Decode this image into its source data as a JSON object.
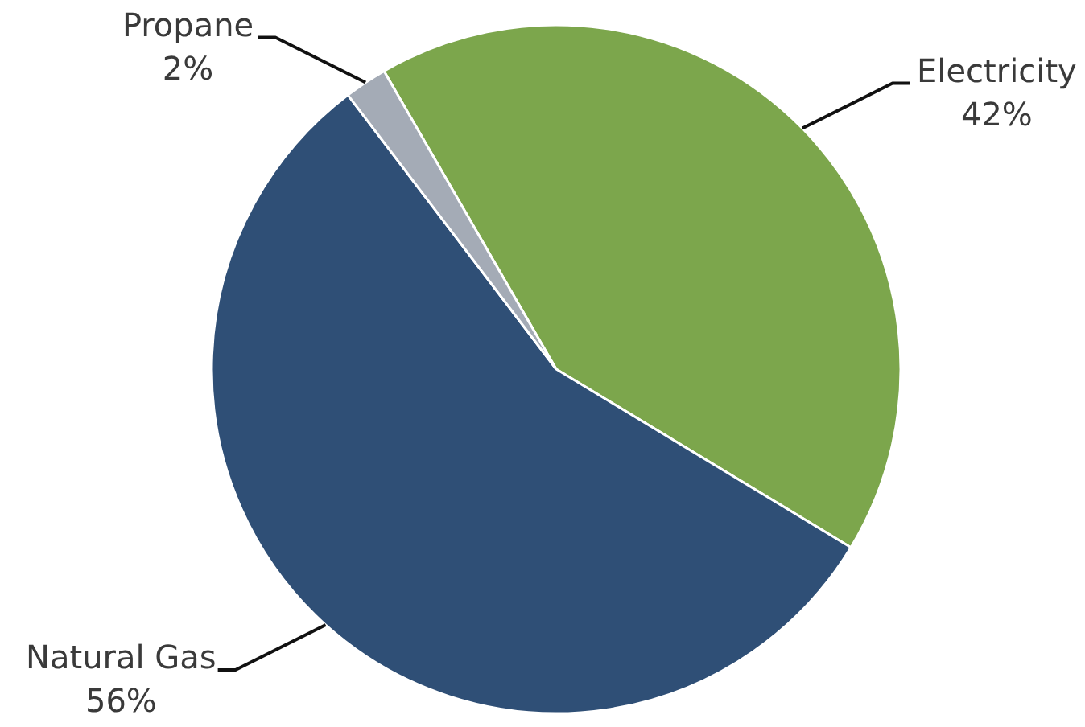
{
  "chart_data": {
    "type": "pie",
    "categories": [
      "Electricity",
      "Natural Gas",
      "Propane"
    ],
    "values": [
      42,
      56,
      2
    ],
    "colors": [
      "#7ca64c",
      "#2f4f76",
      "#a4abb6"
    ],
    "value_labels": [
      "42%",
      "56%",
      "2%"
    ]
  }
}
